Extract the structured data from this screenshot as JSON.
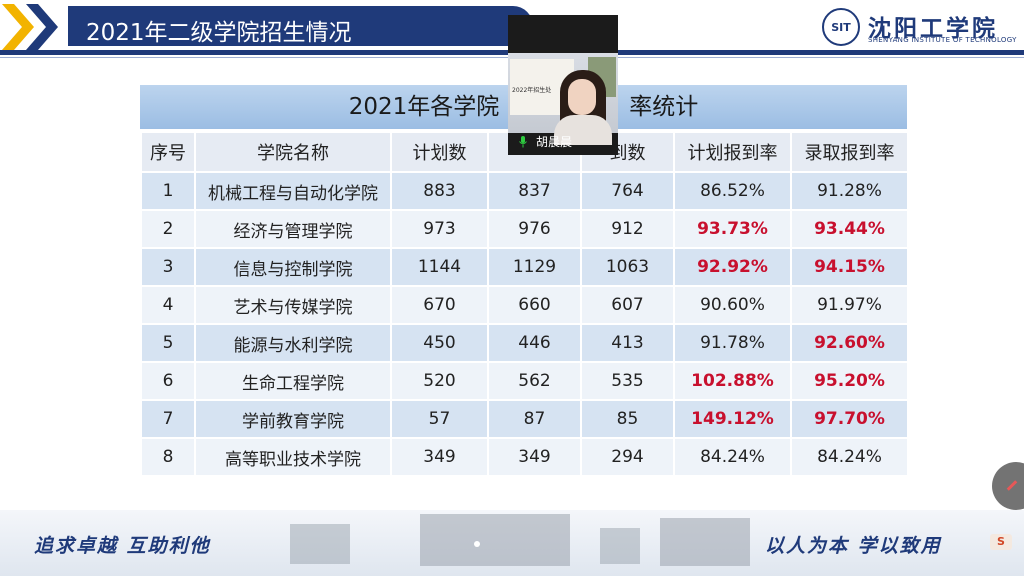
{
  "slide": {
    "title": "2021年二级学院招生情况",
    "logo_seal": "SIT",
    "logo_name": "沈阳工学院",
    "logo_en": "SHENYANG INSTITUTE OF TECHNOLOGY",
    "slogan_left": "追求卓越 互助利他",
    "slogan_right": "以人为本 学以致用"
  },
  "colors": {
    "accent": "#1f3a7a",
    "highlight": "#c8102e",
    "row_odd": "#d6e3f2",
    "row_even": "#eef3f9"
  },
  "table": {
    "title": "2021年各学院",
    "title_tail": "率统计",
    "headers": [
      "序号",
      "学院名称",
      "计划数",
      "",
      "到数",
      "计划报到率",
      "录取报到率"
    ],
    "rows": [
      {
        "no": "1",
        "name": "机械工程与自动化学院",
        "plan": "883",
        "admit": "837",
        "report": "764",
        "plan_rate": "86.52%",
        "admit_rate": "91.28%"
      },
      {
        "no": "2",
        "name": "经济与管理学院",
        "plan": "973",
        "admit": "976",
        "report": "912",
        "plan_rate": "93.73%",
        "admit_rate": "93.44%"
      },
      {
        "no": "3",
        "name": "信息与控制学院",
        "plan": "1144",
        "admit": "1129",
        "report": "1063",
        "plan_rate": "92.92%",
        "admit_rate": "94.15%"
      },
      {
        "no": "4",
        "name": "艺术与传媒学院",
        "plan": "670",
        "admit": "660",
        "report": "607",
        "plan_rate": "90.60%",
        "admit_rate": "91.97%"
      },
      {
        "no": "5",
        "name": "能源与水利学院",
        "plan": "450",
        "admit": "446",
        "report": "413",
        "plan_rate": "91.78%",
        "admit_rate": "92.60%"
      },
      {
        "no": "6",
        "name": "生命工程学院",
        "plan": "520",
        "admit": "562",
        "report": "535",
        "plan_rate": "102.88%",
        "admit_rate": "95.20%"
      },
      {
        "no": "7",
        "name": "学前教育学院",
        "plan": "57",
        "admit": "87",
        "report": "85",
        "plan_rate": "149.12%",
        "admit_rate": "97.70%"
      },
      {
        "no": "8",
        "name": "高等职业技术学院",
        "plan": "349",
        "admit": "349",
        "report": "294",
        "plan_rate": "84.24%",
        "admit_rate": "84.24%"
      }
    ]
  },
  "video": {
    "participant_name": "胡晨晨",
    "slide_text": "2022年招生处"
  },
  "icons": {
    "mic": "microphone-icon",
    "float": "screen-share-off-icon",
    "ppt": "slideshow-icon"
  }
}
